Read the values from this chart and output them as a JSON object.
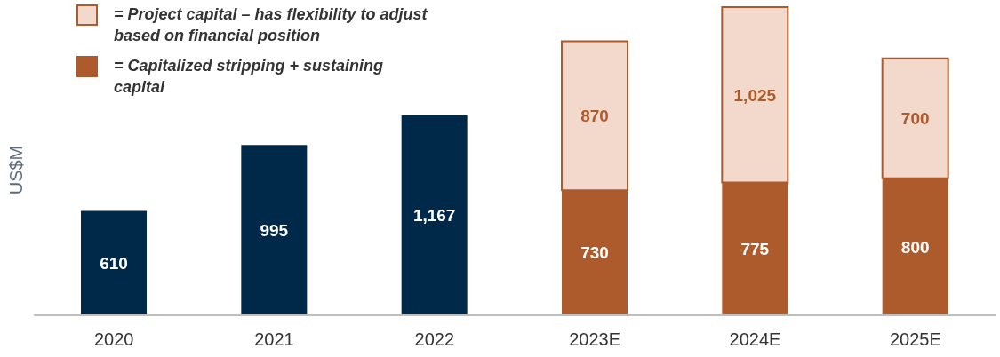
{
  "chart_data": {
    "type": "bar",
    "ylabel": "US$M",
    "categories": [
      "2020",
      "2021",
      "2022",
      "2023E",
      "2024E",
      "2025E"
    ],
    "stacked": true,
    "legend": "top left",
    "series": [
      {
        "color": "#002949",
        "values": [
          610,
          995,
          1167,
          null,
          null,
          null
        ],
        "value_labels": [
          "610",
          "995",
          "1,167",
          null,
          null,
          null
        ]
      },
      {
        "name": "= Capitalized stripping + sustaining capital",
        "color": "#ad5a2c",
        "values": [
          null,
          null,
          null,
          730,
          775,
          800
        ],
        "value_labels": [
          null,
          null,
          null,
          "730",
          "775",
          "800"
        ]
      },
      {
        "name": "= Project capital – has flexibility to adjust based on financial position",
        "color": "#f3d9cb",
        "values": [
          null,
          null,
          null,
          870,
          1025,
          700
        ],
        "value_labels": [
          null,
          null,
          null,
          "870",
          "1,025",
          "700"
        ]
      }
    ]
  }
}
